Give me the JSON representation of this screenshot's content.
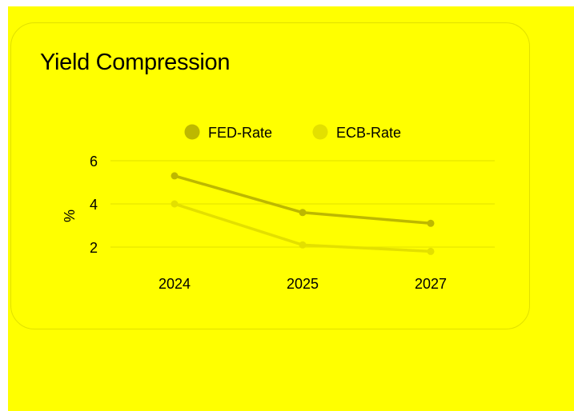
{
  "colors": {
    "background": "#ffff00",
    "card_border": "#e1e100",
    "grid": "#e6e600"
  },
  "chart_data": {
    "type": "line",
    "title": "Yield Compression",
    "ylabel": "%",
    "xlabel": "",
    "categories": [
      "2024",
      "2025",
      "2027"
    ],
    "yticks": [
      2,
      4,
      6
    ],
    "ylim": [
      1.5,
      6.5
    ],
    "grid": true,
    "legend_position": "top",
    "series": [
      {
        "name": "FED-Rate",
        "values": [
          5.3,
          3.6,
          3.1
        ],
        "color": "#bdb800"
      },
      {
        "name": "ECB-Rate",
        "values": [
          4.0,
          2.1,
          1.8
        ],
        "color": "#e3e000"
      }
    ]
  }
}
